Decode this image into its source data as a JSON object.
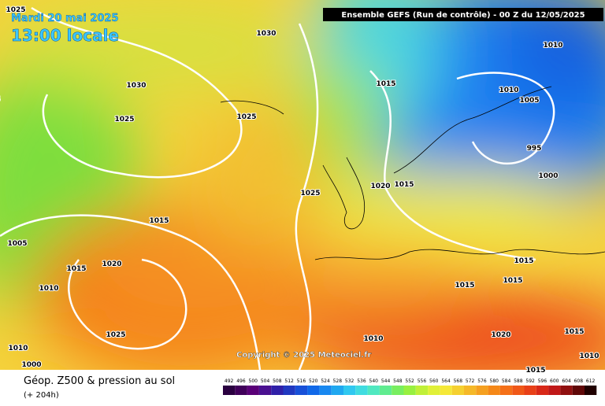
{
  "header": {
    "date": "Mardi 20 mai 2025",
    "time": "13:00 locale",
    "run": "Ensemble GEFS  (Run de contrôle)  -  00 Z du 12/05/2025"
  },
  "copyright": "Copyright © 2025 Meteociel.fr",
  "isobars": [
    "1025",
    "1030",
    "1030",
    "1025",
    "1025",
    "1025",
    "1015",
    "1010",
    "1010",
    "1005",
    "995",
    "1000",
    "1020",
    "1015",
    "1025",
    "1015",
    "1005",
    "1015",
    "1020",
    "1010",
    "1015",
    "1015",
    "1015",
    "1025",
    "1010",
    "1020",
    "1015",
    "1010",
    "1010",
    "1000",
    "1015"
  ],
  "footer": {
    "title": "Géop. Z500 & pression au sol",
    "subtitle": "(+ 204h)"
  },
  "legend": {
    "values": [
      492,
      496,
      500,
      504,
      508,
      512,
      516,
      520,
      524,
      528,
      532,
      536,
      540,
      544,
      548,
      552,
      556,
      560,
      564,
      568,
      572,
      576,
      580,
      584,
      588,
      592,
      596,
      600,
      604,
      608,
      612
    ]
  }
}
